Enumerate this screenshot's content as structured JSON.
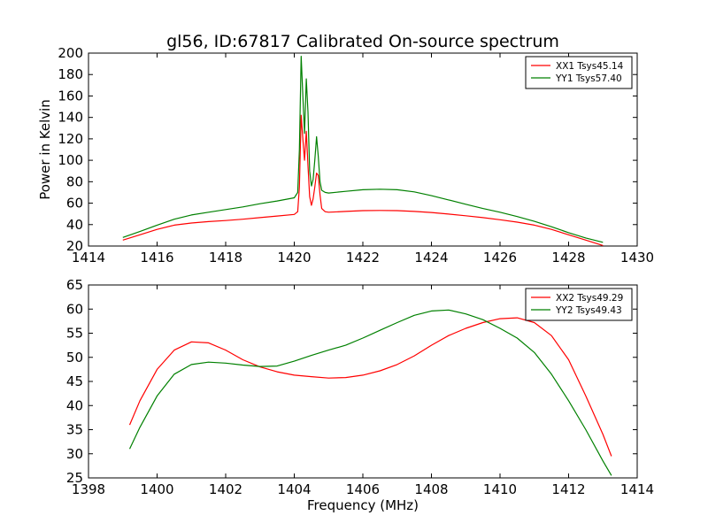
{
  "title": "gl56, ID:67817 Calibrated On-source spectrum",
  "chart_data": [
    {
      "type": "line",
      "title": "gl56, ID:67817 Calibrated On-source spectrum",
      "xlabel": "",
      "ylabel": "Power in Kelvin",
      "xlim": [
        1414,
        1430
      ],
      "ylim": [
        20,
        200
      ],
      "xticks": [
        1414,
        1416,
        1418,
        1420,
        1422,
        1424,
        1426,
        1428,
        1430
      ],
      "yticks": [
        20,
        40,
        60,
        80,
        100,
        120,
        140,
        160,
        180,
        200
      ],
      "grid": false,
      "legend": "top-right",
      "series": [
        {
          "name": "XX1 Tsys45.14",
          "color": "#ff0000",
          "x": [
            1415.0,
            1415.5,
            1416.0,
            1416.5,
            1417.0,
            1417.5,
            1418.0,
            1418.5,
            1419.0,
            1419.5,
            1420.0,
            1420.1,
            1420.15,
            1420.2,
            1420.25,
            1420.3,
            1420.35,
            1420.4,
            1420.45,
            1420.5,
            1420.55,
            1420.6,
            1420.65,
            1420.7,
            1420.75,
            1420.8,
            1420.9,
            1421.0,
            1421.5,
            1422.0,
            1422.5,
            1423.0,
            1423.5,
            1424.0,
            1424.5,
            1425.0,
            1425.5,
            1426.0,
            1426.5,
            1427.0,
            1427.5,
            1428.0,
            1428.5,
            1429.0
          ],
          "y": [
            25.5,
            30.5,
            35.5,
            39.5,
            41.5,
            42.8,
            43.8,
            45.0,
            46.5,
            48.0,
            49.5,
            52,
            75,
            142,
            120,
            100,
            127,
            95,
            66,
            58,
            64,
            75,
            88,
            86,
            68,
            55,
            52,
            51.5,
            52.3,
            53,
            53.2,
            53,
            52.3,
            51.3,
            49.8,
            48.2,
            46.5,
            44.5,
            42.3,
            39.5,
            35.5,
            30.5,
            25.5,
            20.5
          ]
        },
        {
          "name": "YY1 Tsys57.40",
          "color": "#008000",
          "x": [
            1415.0,
            1415.5,
            1416.0,
            1416.5,
            1417.0,
            1417.5,
            1418.0,
            1418.5,
            1419.0,
            1419.5,
            1420.0,
            1420.1,
            1420.15,
            1420.2,
            1420.25,
            1420.3,
            1420.35,
            1420.4,
            1420.45,
            1420.5,
            1420.55,
            1420.6,
            1420.65,
            1420.7,
            1420.75,
            1420.8,
            1420.9,
            1421.0,
            1421.5,
            1422.0,
            1422.5,
            1423.0,
            1423.5,
            1424.0,
            1424.5,
            1425.0,
            1425.5,
            1426.0,
            1426.5,
            1427.0,
            1427.5,
            1428.0,
            1428.5,
            1429.0
          ],
          "y": [
            28,
            33.5,
            39.5,
            45,
            49,
            51.5,
            54,
            56.5,
            59.5,
            62,
            65,
            70,
            110,
            197,
            160,
            125,
            176,
            145,
            90,
            76,
            82,
            100,
            122,
            104,
            80,
            72,
            70,
            69.5,
            71,
            72.5,
            73,
            72.5,
            70.5,
            67,
            63,
            59,
            55,
            51.5,
            47.5,
            43,
            38,
            32.5,
            27.5,
            23.5
          ]
        }
      ]
    },
    {
      "type": "line",
      "title": "",
      "xlabel": "Frequency (MHz)",
      "ylabel": "",
      "xlim": [
        1398,
        1414
      ],
      "ylim": [
        25,
        65
      ],
      "xticks": [
        1398,
        1400,
        1402,
        1404,
        1406,
        1408,
        1410,
        1412,
        1414
      ],
      "yticks": [
        25,
        30,
        35,
        40,
        45,
        50,
        55,
        60,
        65
      ],
      "grid": false,
      "legend": "top-right",
      "series": [
        {
          "name": "XX2 Tsys49.29",
          "color": "#ff0000",
          "x": [
            1399.2,
            1399.5,
            1400.0,
            1400.5,
            1401.0,
            1401.5,
            1402.0,
            1402.5,
            1403.0,
            1403.5,
            1404.0,
            1404.5,
            1405.0,
            1405.5,
            1406.0,
            1406.5,
            1407.0,
            1407.5,
            1408.0,
            1408.5,
            1409.0,
            1409.5,
            1410.0,
            1410.5,
            1411.0,
            1411.5,
            1412.0,
            1412.5,
            1413.0,
            1413.25
          ],
          "y": [
            36,
            41,
            47.5,
            51.5,
            53.2,
            53,
            51.5,
            49.5,
            48,
            47,
            46.3,
            46,
            45.7,
            45.8,
            46.3,
            47.2,
            48.5,
            50.3,
            52.5,
            54.5,
            56,
            57.2,
            58,
            58.2,
            57.2,
            54.5,
            49.5,
            42,
            34,
            29.5
          ]
        },
        {
          "name": "YY2 Tsys49.43",
          "color": "#008000",
          "x": [
            1399.2,
            1399.5,
            1400.0,
            1400.5,
            1401.0,
            1401.5,
            1402.0,
            1402.5,
            1403.0,
            1403.5,
            1404.0,
            1404.5,
            1405.0,
            1405.5,
            1406.0,
            1406.5,
            1407.0,
            1407.5,
            1408.0,
            1408.5,
            1409.0,
            1409.5,
            1410.0,
            1410.5,
            1411.0,
            1411.5,
            1412.0,
            1412.5,
            1413.0,
            1413.25
          ],
          "y": [
            31,
            35.5,
            42,
            46.5,
            48.5,
            49,
            48.8,
            48.4,
            48.1,
            48.2,
            49.2,
            50.4,
            51.5,
            52.5,
            54,
            55.6,
            57.2,
            58.7,
            59.6,
            59.8,
            59,
            57.8,
            56,
            54,
            51,
            46.5,
            41,
            35,
            28.5,
            25.5
          ]
        }
      ]
    }
  ]
}
